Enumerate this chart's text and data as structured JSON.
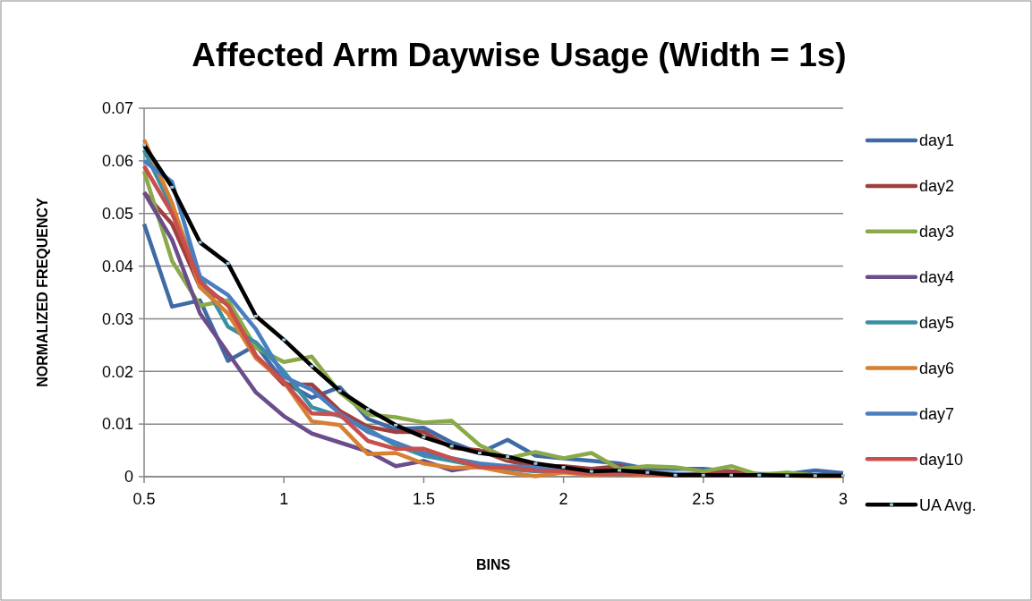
{
  "chart_data": {
    "type": "line",
    "title": "Affected  Arm  Daywise  Usage (Width = 1s)",
    "xlabel": "BINS",
    "ylabel": "NORMALIZED  FREQUENCY",
    "x": [
      0.5,
      0.6,
      0.7,
      0.8,
      0.9,
      1.0,
      1.1,
      1.2,
      1.3,
      1.4,
      1.5,
      1.6,
      1.7,
      1.8,
      1.9,
      2.0,
      2.1,
      2.2,
      2.3,
      2.4,
      2.5,
      2.6,
      2.7,
      2.8,
      2.9,
      3.0
    ],
    "xlim": [
      0.5,
      3
    ],
    "xticks": [
      0.5,
      1,
      1.5,
      2,
      2.5,
      3
    ],
    "ylim": [
      0,
      0.07
    ],
    "yticks": [
      0,
      0.01,
      0.02,
      0.03,
      0.04,
      0.05,
      0.06,
      0.07
    ],
    "grid": "y",
    "legend": "right",
    "marker": "none",
    "line_style": "solid",
    "series": [
      {
        "name": "day1",
        "color": "#3f6aa5",
        "values": [
          0.048,
          0.0323,
          0.0335,
          0.022,
          0.025,
          0.018,
          0.015,
          0.017,
          0.011,
          0.009,
          0.0093,
          0.0065,
          0.0045,
          0.007,
          0.004,
          0.0035,
          0.003,
          0.0025,
          0.0015,
          0.0015,
          0.0015,
          0.001,
          0.0005,
          0.0005,
          0.0012,
          0.0007
        ]
      },
      {
        "name": "day2",
        "color": "#a0403e",
        "values": [
          0.054,
          0.048,
          0.036,
          0.033,
          0.023,
          0.0175,
          0.0175,
          0.0125,
          0.0095,
          0.0085,
          0.0085,
          0.0055,
          0.005,
          0.003,
          0.002,
          0.002,
          0.0015,
          0.002,
          0.0008,
          0.0005,
          0.0005,
          0.001,
          0.0003,
          0.0003,
          0.0003,
          0.0002
        ]
      },
      {
        "name": "day3",
        "color": "#8aaa4a",
        "values": [
          0.058,
          0.041,
          0.0325,
          0.0335,
          0.0245,
          0.0218,
          0.0228,
          0.016,
          0.0118,
          0.0113,
          0.0103,
          0.0106,
          0.006,
          0.0035,
          0.0047,
          0.0035,
          0.0045,
          0.0015,
          0.002,
          0.0018,
          0.001,
          0.002,
          0.0003,
          0.0008,
          0.0002,
          0.0002
        ]
      },
      {
        "name": "day4",
        "color": "#6a4d8a",
        "values": [
          0.054,
          0.045,
          0.031,
          0.0235,
          0.016,
          0.0115,
          0.0082,
          0.0065,
          0.0048,
          0.002,
          0.003,
          0.0012,
          0.002,
          0.0015,
          0.0012,
          0.001,
          0.0005,
          0.0005,
          0.0005,
          0.0003,
          0.0003,
          0.0003,
          0.0002,
          0.0002,
          0.0002,
          0.0002
        ]
      },
      {
        "name": "day5",
        "color": "#3a8fa3",
        "values": [
          0.062,
          0.051,
          0.038,
          0.0285,
          0.0255,
          0.02,
          0.0132,
          0.0115,
          0.009,
          0.006,
          0.004,
          0.003,
          0.002,
          0.0015,
          0.001,
          0.001,
          0.0008,
          0.0005,
          0.0005,
          0.0003,
          0.0003,
          0.0003,
          0.0002,
          0.0002,
          0.0002,
          0.0002
        ]
      },
      {
        "name": "day6",
        "color": "#d77f33",
        "values": [
          0.064,
          0.052,
          0.036,
          0.031,
          0.0225,
          0.018,
          0.0105,
          0.0098,
          0.0043,
          0.0045,
          0.0025,
          0.0017,
          0.0018,
          0.0008,
          0.0001,
          0.0008,
          0.0003,
          0.0005,
          0.0003,
          0.0002,
          0.0002,
          0.0002,
          0.0002,
          0.0002,
          0.0001,
          0.0001
        ]
      },
      {
        "name": "day7",
        "color": "#4a7ec0",
        "values": [
          0.06,
          0.056,
          0.038,
          0.0345,
          0.028,
          0.019,
          0.0165,
          0.012,
          0.0085,
          0.0065,
          0.0045,
          0.0035,
          0.0025,
          0.002,
          0.0018,
          0.0015,
          0.001,
          0.0008,
          0.0005,
          0.0005,
          0.0003,
          0.0003,
          0.0002,
          0.0002,
          0.0002,
          0.0002
        ]
      },
      {
        "name": "day10",
        "color": "#c94f4c",
        "values": [
          0.059,
          0.05,
          0.037,
          0.0325,
          0.023,
          0.018,
          0.012,
          0.0118,
          0.0068,
          0.0053,
          0.0053,
          0.0035,
          0.0018,
          0.0018,
          0.0012,
          0.001,
          0.0005,
          0.0005,
          0.0005,
          0.0002,
          0.0002,
          0.0002,
          0.0002,
          null,
          0.0002,
          0.0002
        ]
      },
      {
        "name": "UA Avg.",
        "color": "#000000",
        "marker": "square",
        "values": [
          0.063,
          0.055,
          0.0445,
          0.0405,
          0.0305,
          0.026,
          0.021,
          0.0163,
          0.0128,
          0.0098,
          0.0075,
          0.0058,
          0.0045,
          0.0038,
          0.0025,
          0.0018,
          0.001,
          0.0012,
          0.0008,
          0.0003,
          0.0003,
          0.0003,
          0.0003,
          0.0002,
          0.0002,
          0.0002
        ]
      }
    ]
  }
}
